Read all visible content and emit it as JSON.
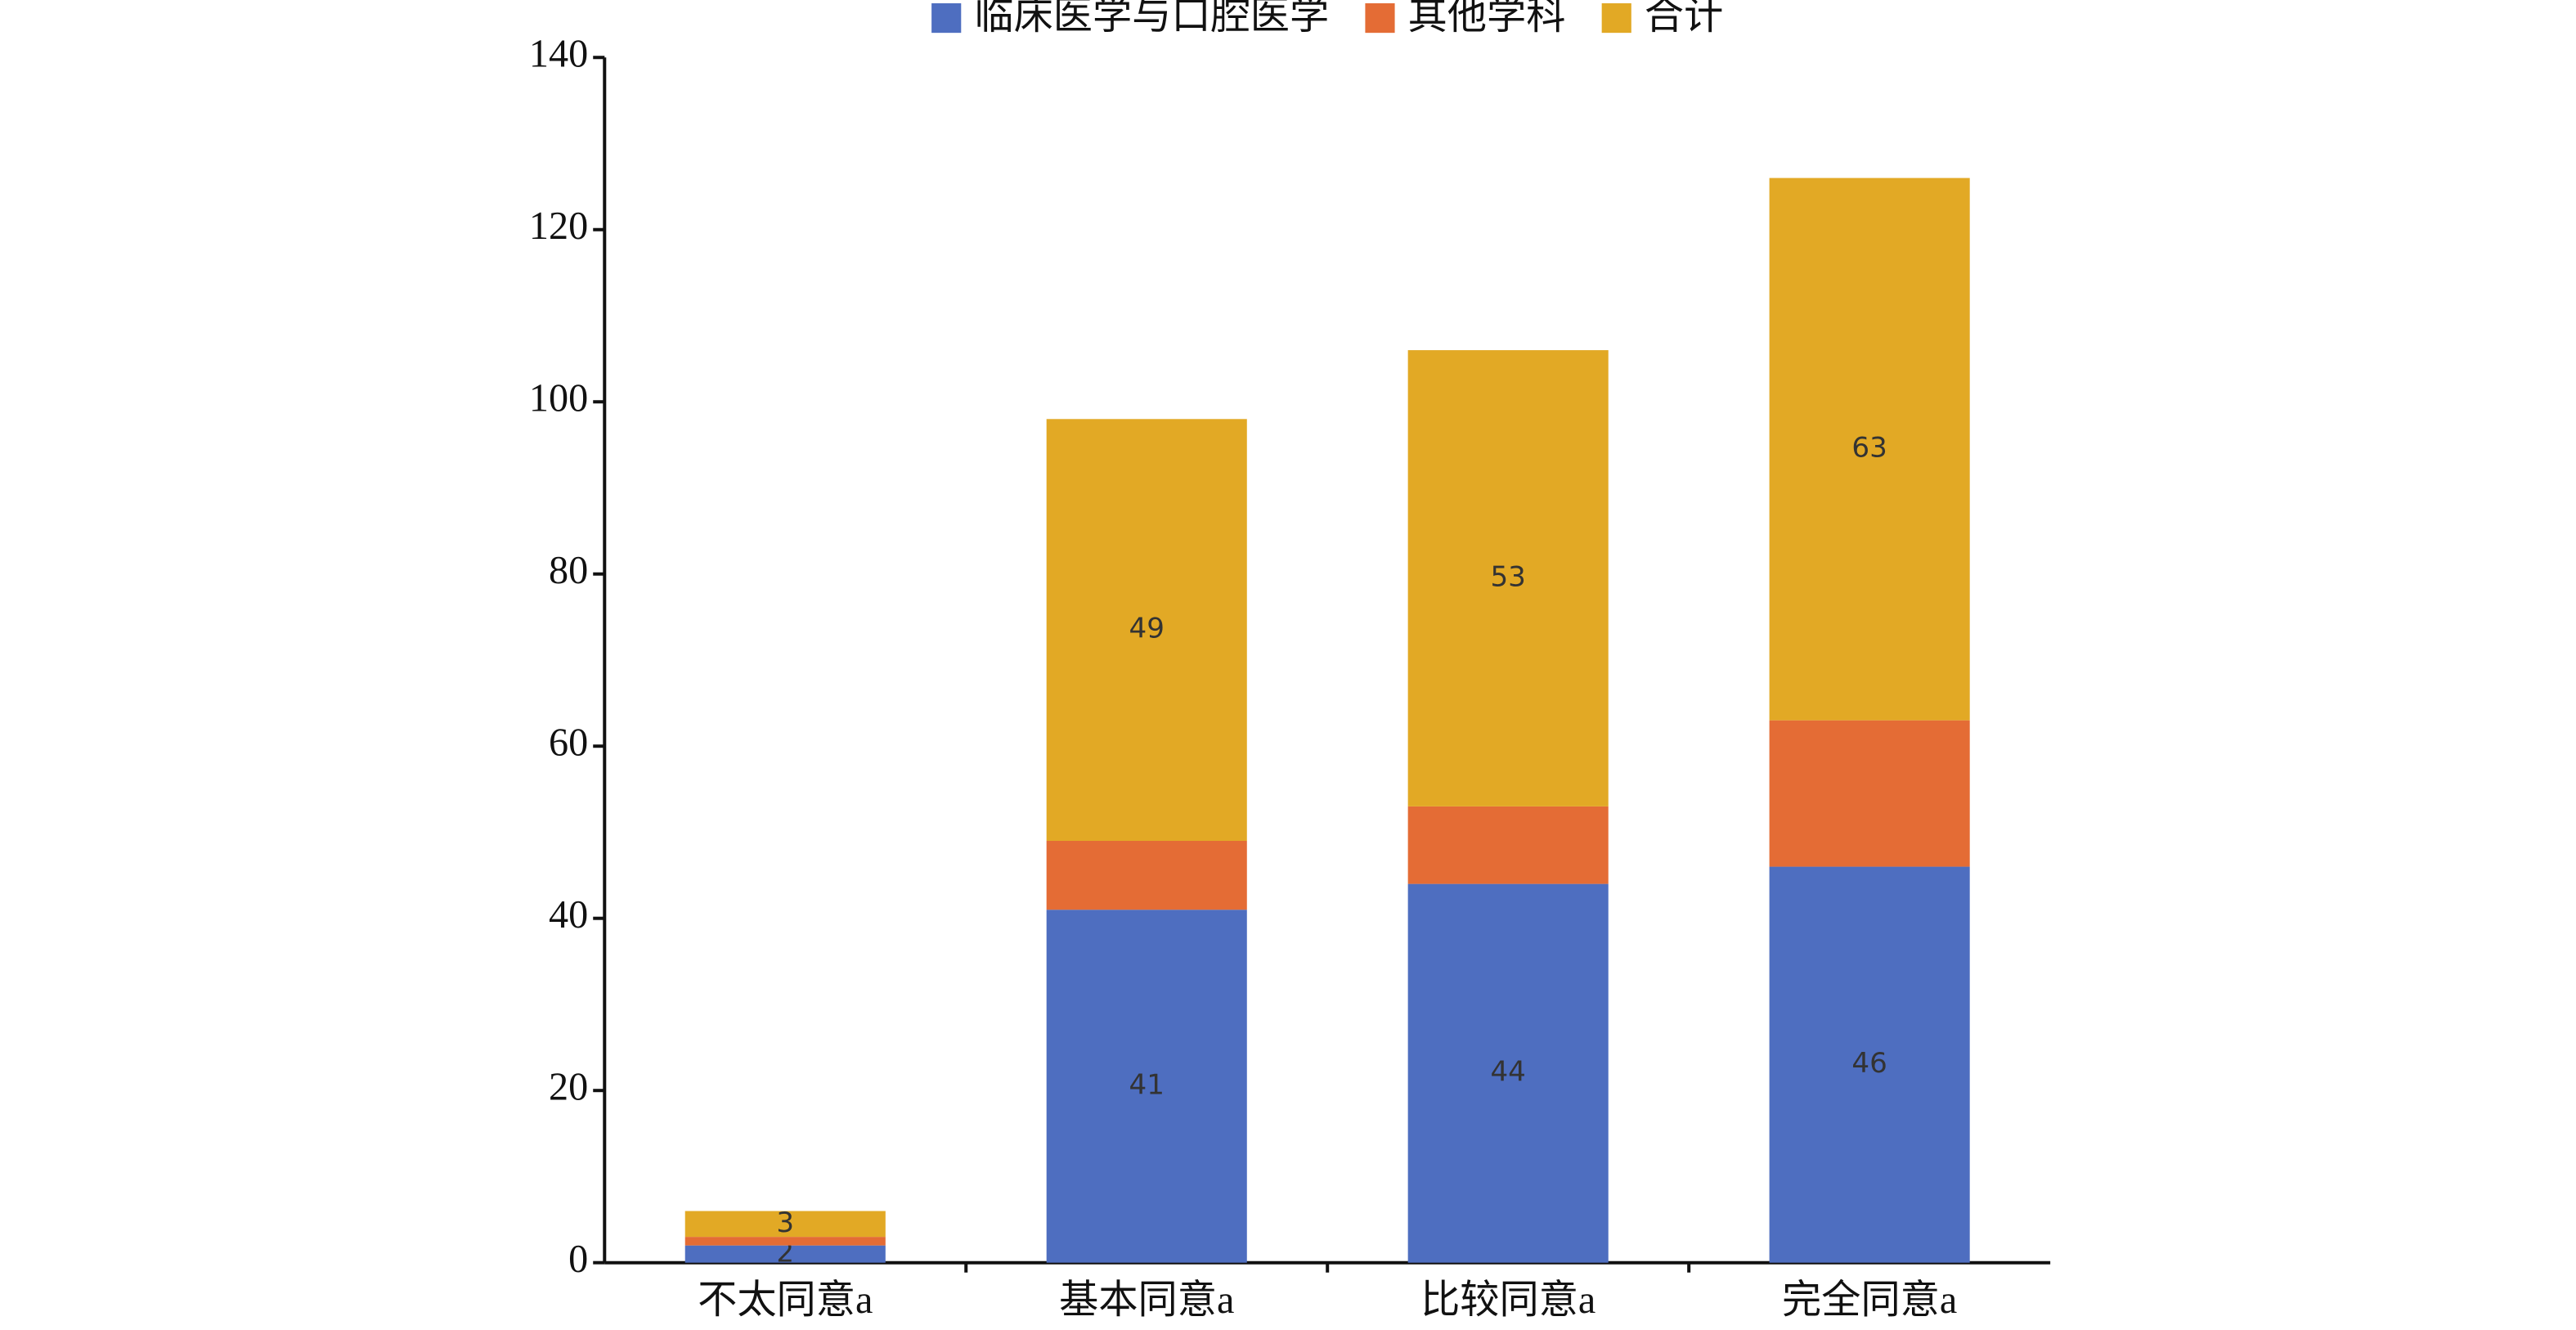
{
  "chart_data": {
    "type": "stacked_bar",
    "categories": [
      "不太同意a",
      "基本同意a",
      "比较同意a",
      "完全同意a"
    ],
    "series": [
      {
        "name": "临床医学与口腔医学",
        "color": "#4e6ec0",
        "values": [
          2,
          41,
          44,
          46
        ],
        "show_labels": true
      },
      {
        "name": "其他学科",
        "color": "#e46c35",
        "values": [
          1,
          8,
          9,
          17
        ],
        "show_labels": false
      },
      {
        "name": "合计",
        "color": "#e2a925",
        "values": [
          3,
          49,
          53,
          63
        ],
        "show_labels": true
      }
    ],
    "ylim": [
      0,
      140
    ],
    "yticks": [
      0,
      20,
      40,
      60,
      80,
      100,
      120,
      140
    ],
    "grid": false,
    "legend": "top"
  }
}
